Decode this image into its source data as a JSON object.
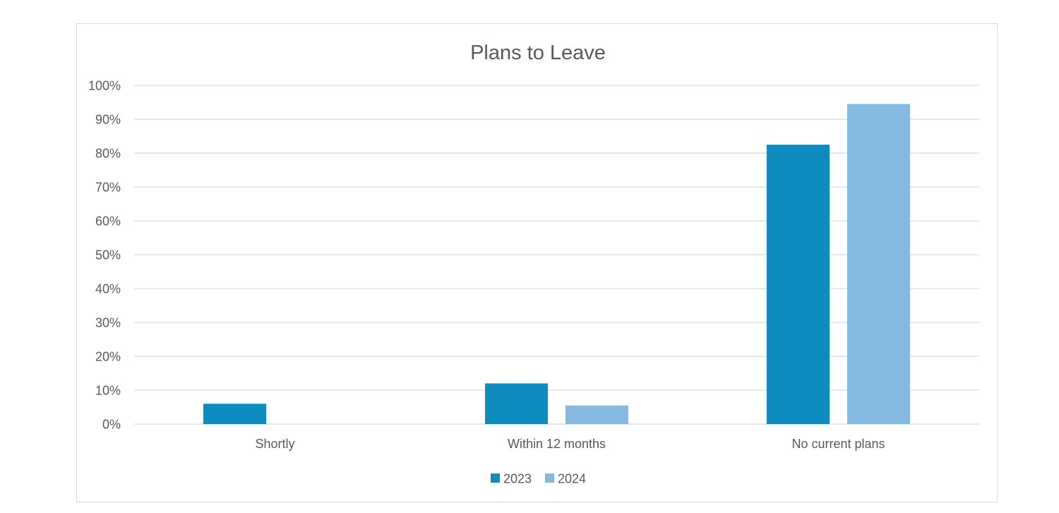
{
  "chart_data": {
    "type": "bar",
    "title": "Plans to Leave",
    "categories": [
      "Shortly",
      "Within 12 months",
      "No current plans"
    ],
    "series": [
      {
        "name": "2023",
        "values": [
          6,
          12,
          82.5
        ],
        "color": "#0e8bbf"
      },
      {
        "name": "2024",
        "values": [
          0,
          5.5,
          94.5
        ],
        "color": "#85b9e0"
      }
    ],
    "ylim": [
      0,
      100
    ],
    "yticks": [
      "0%",
      "10%",
      "20%",
      "30%",
      "40%",
      "50%",
      "60%",
      "70%",
      "80%",
      "90%",
      "100%"
    ],
    "grid": true,
    "legend_position": "bottom"
  }
}
